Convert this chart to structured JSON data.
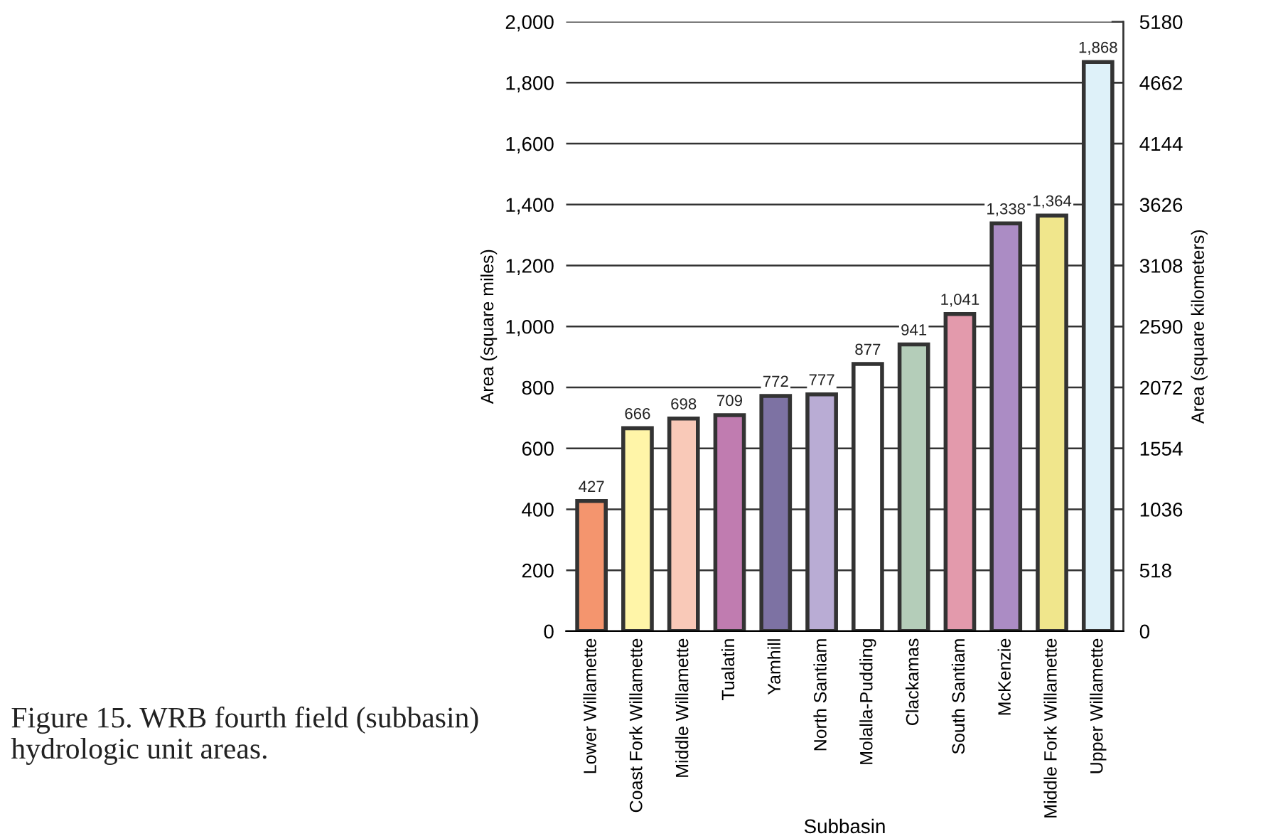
{
  "chart_data": {
    "type": "bar",
    "xlabel": "Subbasin",
    "ylabel": "Area (square miles)",
    "y2label": "Area (square kilometers)",
    "categories": [
      "Lower Willamette",
      "Coast Fork Willamette",
      "Middle Willamette",
      "Tualatin",
      "Yamhill",
      "North Santiam",
      "Molalla-Pudding",
      "Clackamas",
      "South Santiam",
      "McKenzie",
      "Middle Fork Willamette",
      "Upper Willamette"
    ],
    "values": [
      427,
      666,
      698,
      709,
      772,
      777,
      877,
      941,
      1041,
      1338,
      1364,
      1868
    ],
    "colors": [
      "#f4956e",
      "#fff5a8",
      "#f9c9b8",
      "#c07cb0",
      "#7d72a3",
      "#b9acd4",
      "#ffffff",
      "#b4cdb9",
      "#e39aac",
      "#ab8cc4",
      "#f0e68c",
      "#def1f9"
    ],
    "value_labels": [
      "427",
      "666",
      "698",
      "709",
      "772",
      "777",
      "877",
      "941",
      "1,041",
      "1,338",
      "1,364",
      "1,868"
    ],
    "ylim": [
      0,
      2000
    ],
    "yticks": [
      0,
      200,
      400,
      600,
      800,
      {
        "value": 1000,
        "label": "1,000"
      },
      {
        "value": 1200,
        "label": "1,200"
      },
      {
        "value": 1400,
        "label": "1,400"
      },
      {
        "value": 1600,
        "label": "1,600"
      },
      {
        "value": 1800,
        "label": "1,800"
      },
      {
        "value": 2000,
        "label": "2,000"
      }
    ],
    "y2lim": [
      0,
      5180
    ],
    "y2ticks": [
      0,
      518,
      1036,
      1554,
      2072,
      2590,
      3108,
      3626,
      4144,
      4662,
      5180
    ],
    "grid": "y",
    "legend": false,
    "annotations": [
      "Figure 15. WRB fourth field (subbasin) hydrologic unit areas."
    ]
  }
}
